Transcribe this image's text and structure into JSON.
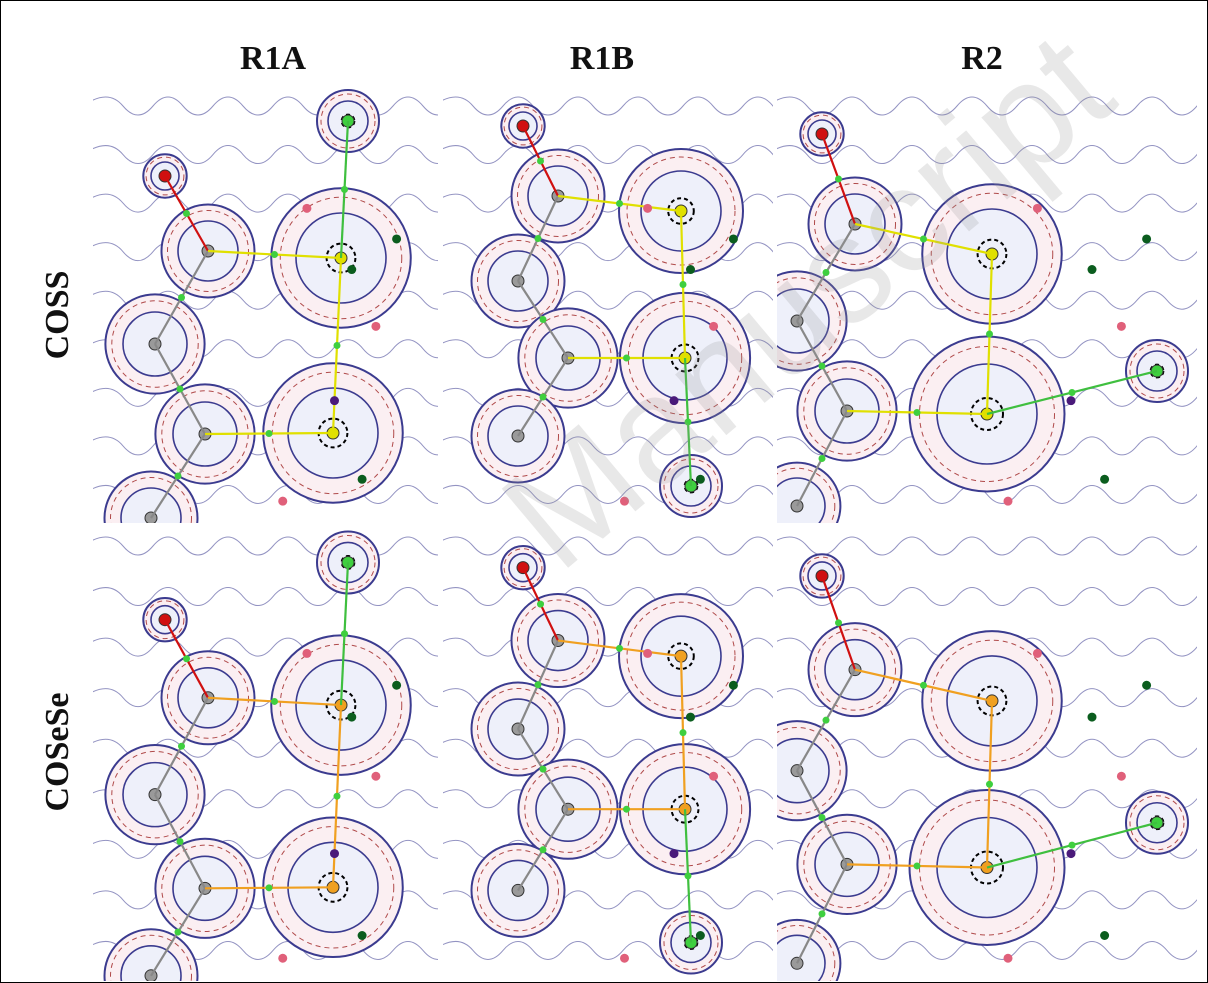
{
  "columns": [
    {
      "label": "R1A"
    },
    {
      "label": "R1B"
    },
    {
      "label": "R2"
    }
  ],
  "rows": [
    {
      "label": "COSS",
      "bond_color": "#e0e000"
    },
    {
      "label": "COSeSe",
      "bond_color": "#f0a020"
    }
  ],
  "watermark": "Manuscript",
  "colors": {
    "contour_solid": "#3b3b8f",
    "contour_dashed": "#b04a4a",
    "bond_gray": "#888888",
    "bond_red": "#d01010",
    "bond_green": "#3fbf3f",
    "bcp_green": "#3fcf3f",
    "rcp_pink": "#e0607a",
    "ccp_dark_green": "#0b5d1e",
    "ccp_purple": "#4a1a7a"
  }
}
